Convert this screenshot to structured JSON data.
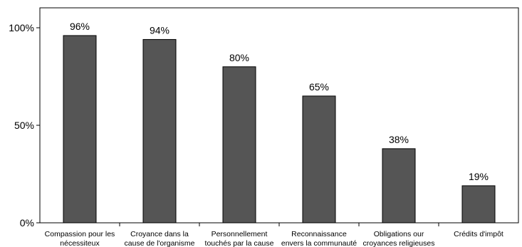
{
  "chart_data": {
    "type": "bar",
    "title": "",
    "xlabel": "",
    "ylabel": "",
    "ylim": [
      0,
      100
    ],
    "yticks": [
      {
        "value": 0,
        "label": "0%"
      },
      {
        "value": 50,
        "label": "50%"
      },
      {
        "value": 100,
        "label": "100%"
      }
    ],
    "grid": false,
    "categories": [
      [
        "Compassion pour les",
        "nécessiteux"
      ],
      [
        "Croyance dans la",
        "cause de l'organisme"
      ],
      [
        "Personnellement",
        "touchés par la cause"
      ],
      [
        "Reconnaissance",
        "envers la communauté"
      ],
      [
        "Obligations our",
        "croyances religieuses"
      ],
      [
        "Crédits d'impôt"
      ]
    ],
    "values": [
      96,
      94,
      80,
      65,
      38,
      19
    ],
    "value_labels": [
      "96%",
      "94%",
      "80%",
      "65%",
      "38%",
      "19%"
    ],
    "bar_color": "#555555",
    "bar_edge_color": "#000000"
  }
}
